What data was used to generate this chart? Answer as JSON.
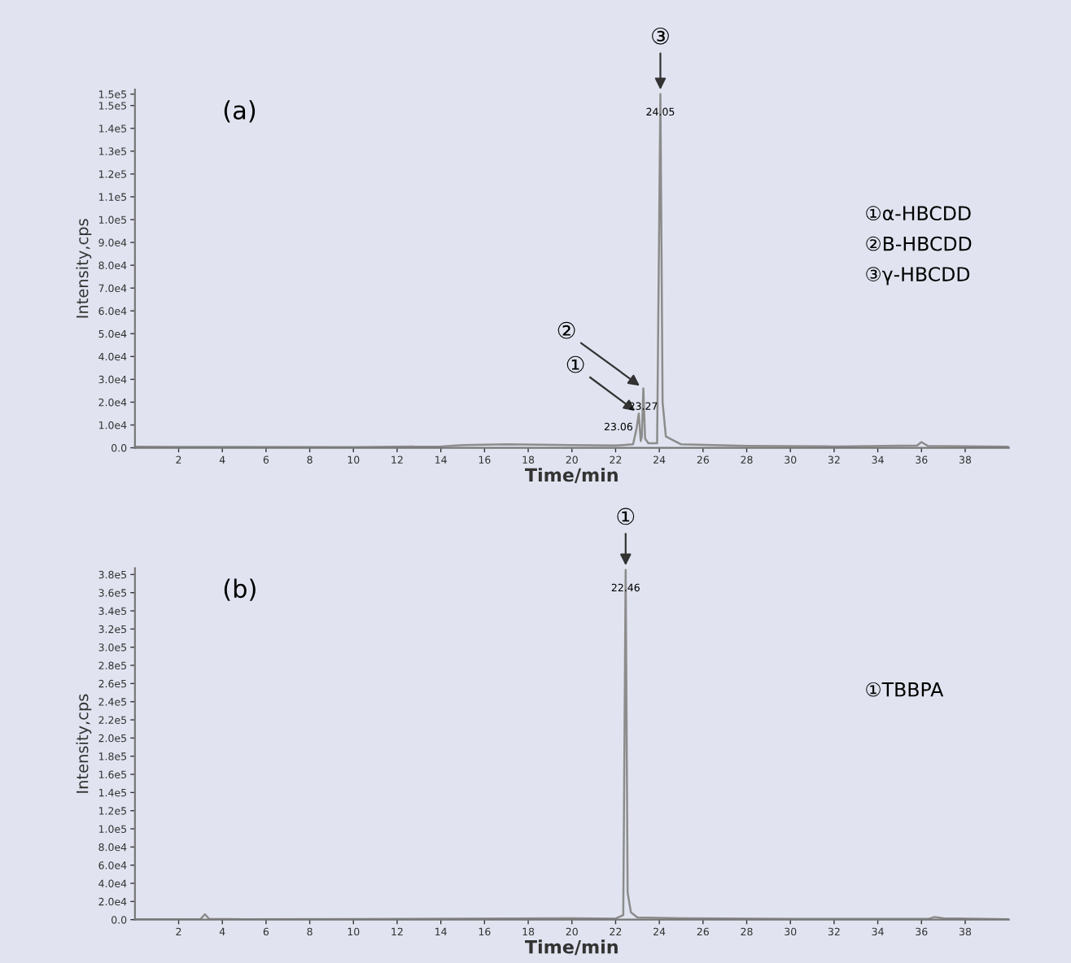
{
  "chart_data": [
    {
      "type": "line",
      "title": "(a)",
      "xlabel": "Time/min",
      "ylabel": "Intensity,cps",
      "x": [
        0,
        2,
        5,
        10,
        14,
        15,
        17,
        20,
        22,
        22.8,
        22.95,
        23.06,
        23.15,
        23.2,
        23.27,
        23.35,
        23.5,
        23.9,
        24.05,
        24.15,
        24.3,
        25,
        28,
        32,
        35.8,
        36,
        36.3,
        40
      ],
      "series": [
        {
          "color": "#8c8c8c",
          "values": [
            500,
            400,
            400,
            300,
            600,
            1200,
            1500,
            1200,
            1000,
            1500,
            8000,
            15000,
            3000,
            5000,
            26000,
            4000,
            2000,
            2000,
            155000,
            20000,
            5000,
            1500,
            800,
            600,
            1000,
            2500,
            800,
            500
          ]
        }
      ],
      "xlim": [
        0,
        40
      ],
      "xticks": [
        2,
        4,
        6,
        8,
        10,
        12,
        14,
        16,
        18,
        20,
        22,
        24,
        26,
        28,
        30,
        32,
        34,
        36,
        38
      ],
      "ylim": [
        0,
        157000
      ],
      "yticks": [
        {
          "value": 0,
          "label": "0.0"
        },
        {
          "value": 10000,
          "label": "1.0e4"
        },
        {
          "value": 20000,
          "label": "2.0e4"
        },
        {
          "value": 30000,
          "label": "3.0e4"
        },
        {
          "value": 40000,
          "label": "4.0e4"
        },
        {
          "value": 50000,
          "label": "5.0e4"
        },
        {
          "value": 60000,
          "label": "6.0e4"
        },
        {
          "value": 70000,
          "label": "7.0e4"
        },
        {
          "value": 80000,
          "label": "8.0e4"
        },
        {
          "value": 90000,
          "label": "9.0e4"
        },
        {
          "value": 100000,
          "label": "1.0e5"
        },
        {
          "value": 110000,
          "label": "1.1e5"
        },
        {
          "value": 120000,
          "label": "1.2e5"
        },
        {
          "value": 130000,
          "label": "1.3e5"
        },
        {
          "value": 140000,
          "label": "1.4e5"
        },
        {
          "value": 150000,
          "label": "1.5e5"
        },
        {
          "value": 155000,
          "label": "1.5e5"
        }
      ],
      "annotations": [
        "①α-HBCDD",
        "②B-HBCDD",
        "③γ-HBCDD",
        {
          "text": "①",
          "x": 23.06,
          "y": 15000
        },
        {
          "text": "②",
          "x": 23.27,
          "y": 26000
        },
        {
          "text": "③",
          "x": 24.05,
          "y": 155000
        },
        {
          "text": "23.06",
          "x": 23.06,
          "y": 15000
        },
        {
          "text": "23.27",
          "x": 23.27,
          "y": 26000
        },
        {
          "text": "24.05",
          "x": 24.05,
          "y": 155000
        }
      ]
    },
    {
      "type": "line",
      "title": "(b)",
      "xlabel": "Time/min",
      "ylabel": "Intensity,cps",
      "x": [
        0,
        2,
        3.0,
        3.2,
        3.4,
        5,
        10,
        15,
        20,
        22,
        22.35,
        22.46,
        22.55,
        22.7,
        23,
        25,
        30,
        36.3,
        36.6,
        37,
        40
      ],
      "series": [
        {
          "color": "#8c8c8c",
          "values": [
            500,
            500,
            600,
            6000,
            800,
            500,
            600,
            1000,
            1500,
            1200,
            5000,
            385000,
            30000,
            8000,
            2500,
            1500,
            800,
            800,
            3000,
            1500,
            500
          ]
        }
      ],
      "xlim": [
        0,
        40
      ],
      "xticks": [
        2,
        4,
        6,
        8,
        10,
        12,
        14,
        16,
        18,
        20,
        22,
        24,
        26,
        28,
        30,
        32,
        34,
        36,
        38
      ],
      "ylim": [
        0,
        387000
      ],
      "yticks": [
        {
          "value": 0,
          "label": "0.0"
        },
        {
          "value": 20000,
          "label": "2.0e4"
        },
        {
          "value": 40000,
          "label": "4.0e4"
        },
        {
          "value": 60000,
          "label": "6.0e4"
        },
        {
          "value": 80000,
          "label": "8.0e4"
        },
        {
          "value": 100000,
          "label": "1.0e5"
        },
        {
          "value": 120000,
          "label": "1.2e5"
        },
        {
          "value": 140000,
          "label": "1.4e5"
        },
        {
          "value": 160000,
          "label": "1.6e5"
        },
        {
          "value": 180000,
          "label": "1.8e5"
        },
        {
          "value": 200000,
          "label": "2.0e5"
        },
        {
          "value": 220000,
          "label": "2.2e5"
        },
        {
          "value": 240000,
          "label": "2.4e5"
        },
        {
          "value": 260000,
          "label": "2.6e5"
        },
        {
          "value": 280000,
          "label": "2.8e5"
        },
        {
          "value": 300000,
          "label": "3.0e5"
        },
        {
          "value": 320000,
          "label": "3.2e5"
        },
        {
          "value": 340000,
          "label": "3.4e5"
        },
        {
          "value": 360000,
          "label": "3.6e5"
        },
        {
          "value": 380000,
          "label": "3.8e5"
        }
      ],
      "annotations": [
        "①TBBPA",
        {
          "text": "①",
          "x": 22.46,
          "y": 385000
        },
        {
          "text": "22.46",
          "x": 22.46,
          "y": 385000
        }
      ]
    }
  ]
}
